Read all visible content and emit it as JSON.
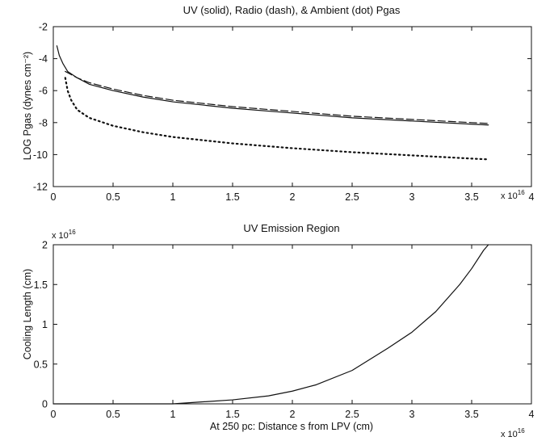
{
  "chart_data": [
    {
      "type": "line",
      "title": "UV (solid), Radio (dash), & Ambient (dot) Pgas",
      "xlabel": "",
      "ylabel": "LOG Pgas (dynes cm⁻²)",
      "x_multiplier": "x 10",
      "x_multiplier_exp": "16",
      "xlim": [
        0,
        4
      ],
      "ylim": [
        -12,
        -2
      ],
      "xticks": [
        "0",
        "0.5",
        "1",
        "1.5",
        "2",
        "2.5",
        "3",
        "3.5",
        "4"
      ],
      "yticks": [
        "-2",
        "-4",
        "-6",
        "-8",
        "-10",
        "-12"
      ],
      "grid": false,
      "series": [
        {
          "style": "solid",
          "x": [
            0.03,
            0.05,
            0.08,
            0.12,
            0.2,
            0.3,
            0.5,
            0.75,
            1.0,
            1.5,
            2.0,
            2.5,
            3.0,
            3.5,
            3.64
          ],
          "y": [
            -3.2,
            -3.8,
            -4.3,
            -4.8,
            -5.2,
            -5.6,
            -6.0,
            -6.4,
            -6.7,
            -7.1,
            -7.4,
            -7.7,
            -7.9,
            -8.1,
            -8.15
          ]
        },
        {
          "style": "dashed",
          "x": [
            0.1,
            0.15,
            0.2,
            0.3,
            0.5,
            0.75,
            1.0,
            1.5,
            2.0,
            2.5,
            3.0,
            3.5,
            3.64
          ],
          "y": [
            -4.8,
            -5.0,
            -5.2,
            -5.5,
            -5.9,
            -6.3,
            -6.6,
            -7.0,
            -7.3,
            -7.6,
            -7.8,
            -8.0,
            -8.05
          ]
        },
        {
          "style": "dotted",
          "x": [
            0.1,
            0.12,
            0.15,
            0.2,
            0.3,
            0.5,
            0.75,
            1.0,
            1.5,
            2.0,
            2.5,
            3.0,
            3.5,
            3.64
          ],
          "y": [
            -5.2,
            -6.0,
            -6.6,
            -7.2,
            -7.7,
            -8.2,
            -8.6,
            -8.9,
            -9.3,
            -9.6,
            -9.85,
            -10.05,
            -10.25,
            -10.3
          ]
        }
      ]
    },
    {
      "type": "line",
      "title": "UV Emission Region",
      "xlabel": "At 250 pc: Distance s from LPV (cm)",
      "ylabel": "Cooling Length (cm)",
      "x_multiplier": "x 10",
      "x_multiplier_exp": "16",
      "y_multiplier": "x 10",
      "y_multiplier_exp": "16",
      "xlim": [
        0,
        4
      ],
      "ylim": [
        0,
        2
      ],
      "xticks": [
        "0",
        "0.5",
        "1",
        "1.5",
        "2",
        "2.5",
        "3",
        "3.5",
        "4"
      ],
      "yticks": [
        "2",
        "1.5",
        "1",
        "0.5",
        "0"
      ],
      "grid": false,
      "series": [
        {
          "style": "solid",
          "x": [
            0.0,
            0.5,
            1.0,
            1.2,
            1.5,
            1.8,
            2.0,
            2.2,
            2.5,
            2.8,
            3.0,
            3.2,
            3.4,
            3.5,
            3.6,
            3.64
          ],
          "y": [
            0.0,
            0.0,
            0.0,
            0.02,
            0.05,
            0.1,
            0.16,
            0.24,
            0.42,
            0.7,
            0.9,
            1.16,
            1.5,
            1.7,
            1.93,
            2.0
          ]
        }
      ]
    }
  ]
}
